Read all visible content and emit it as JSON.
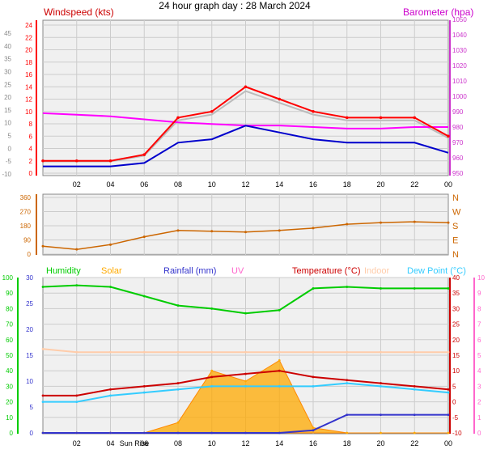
{
  "title": "24 hour graph day : 28 March 2024",
  "colors": {
    "wind": "#ff0000",
    "windAvg": "#0000cc",
    "windGustGrey": "#bbbbbb",
    "baro": "#ff00ff",
    "dir": "#cc6600",
    "humidity": "#00cc00",
    "solar": "#ffaa00",
    "rain": "#3333cc",
    "uv": "#ff66cc",
    "temp": "#cc0000",
    "indoor": "#ffccaa",
    "dew": "#33ccff"
  },
  "x_ticks": [
    "02",
    "04",
    "06",
    "08",
    "10",
    "12",
    "14",
    "16",
    "18",
    "20",
    "22",
    "00"
  ],
  "sunrise_label": "Sun Rise",
  "panel1": {
    "left_title": "Windspeed (kts)",
    "right_title": "Barometer (hpa)",
    "left_outer_ticks": [
      "45",
      "40",
      "35",
      "30",
      "25",
      "20",
      "15",
      "10",
      "5",
      "0",
      "-5",
      "-10"
    ],
    "left_inner_ticks": [
      "24",
      "22",
      "20",
      "18",
      "16",
      "14",
      "12",
      "10",
      "8",
      "6",
      "4",
      "2",
      "0"
    ],
    "right_ticks": [
      "1050",
      "1040",
      "1030",
      "1020",
      "1010",
      "1000",
      "990",
      "980",
      "970",
      "960",
      "950"
    ]
  },
  "panel2": {
    "left_ticks": [
      "360",
      "270",
      "180",
      "90",
      "0"
    ],
    "right_labels": [
      "N",
      "W",
      "S",
      "E",
      "N"
    ]
  },
  "panel3": {
    "legend": [
      "Humidity",
      "Solar",
      "Rainfall (mm)",
      "UV",
      "Temperature (°C)",
      "Indoor",
      "Dew Point (°C)"
    ],
    "left_outer_ticks": [
      "100",
      "90",
      "80",
      "70",
      "60",
      "50",
      "40",
      "30",
      "20",
      "10",
      "0"
    ],
    "left_inner_ticks": [
      "30",
      "25",
      "20",
      "15",
      "10",
      "5",
      "0"
    ],
    "right_temp_ticks": [
      "40",
      "35",
      "30",
      "25",
      "20",
      "15",
      "10",
      "5",
      "0",
      "-5",
      "-10"
    ],
    "right_uv_ticks": [
      "10",
      "9",
      "8",
      "7",
      "6",
      "5",
      "4",
      "3",
      "2",
      "1",
      "0"
    ]
  },
  "chart_data": [
    {
      "type": "line",
      "title": "Windspeed (kts)",
      "x": [
        "00",
        "02",
        "04",
        "06",
        "08",
        "10",
        "12",
        "14",
        "16",
        "18",
        "20",
        "22",
        "00"
      ],
      "series": [
        {
          "name": "Windspeed (kts)",
          "values": [
            2,
            2,
            2,
            3,
            9,
            10,
            14,
            12,
            10,
            9,
            9,
            9,
            6
          ]
        },
        {
          "name": "Barometer (hpa)",
          "values": [
            989,
            988,
            987,
            985,
            983,
            982,
            981,
            981,
            980,
            979,
            979,
            980,
            980
          ]
        }
      ],
      "ylim": [
        0,
        24
      ]
    },
    {
      "type": "line",
      "x": [
        "00",
        "02",
        "04",
        "06",
        "08",
        "10",
        "12",
        "14",
        "16",
        "18",
        "20",
        "22",
        "00"
      ],
      "series": [
        {
          "values": [
            50,
            30,
            60,
            110,
            150,
            145,
            140,
            150,
            165,
            190,
            200,
            205,
            200
          ]
        }
      ],
      "ylim": [
        0,
        360
      ]
    },
    {
      "type": "area",
      "x": [
        "00",
        "02",
        "04",
        "06",
        "08",
        "10",
        "12",
        "14",
        "16",
        "18",
        "20",
        "22",
        "00"
      ],
      "series": [
        {
          "name": "Humidity",
          "values": [
            94,
            95,
            94,
            88,
            82,
            80,
            77,
            79,
            93,
            94,
            93,
            93,
            93
          ]
        },
        {
          "name": "Temperature (°C)",
          "values": [
            2,
            2,
            4,
            5,
            6,
            8,
            9,
            10,
            8,
            7,
            6,
            5,
            4
          ]
        },
        {
          "name": "Dew Point (°C)",
          "values": [
            0,
            0,
            2,
            3,
            4,
            5,
            5,
            5,
            5,
            6,
            5,
            4,
            3
          ]
        },
        {
          "name": "Indoor",
          "values": [
            17,
            16,
            16,
            16,
            16,
            16,
            16,
            16,
            16,
            16,
            16,
            16,
            16
          ]
        },
        {
          "name": "Solar",
          "values": [
            0,
            0,
            0,
            0,
            2,
            12,
            10,
            14,
            1,
            0,
            0,
            0,
            0
          ]
        },
        {
          "name": "Rainfall (mm)",
          "values": [
            0,
            0,
            0,
            0,
            0,
            0,
            0,
            0,
            0.5,
            3.5,
            3.5,
            3.5,
            3.5
          ]
        }
      ]
    }
  ]
}
